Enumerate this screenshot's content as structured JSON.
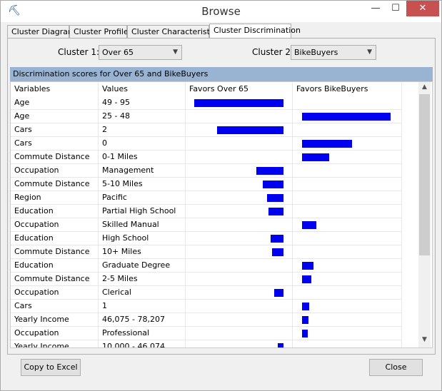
{
  "window": {
    "title": "Browse",
    "icon": "pickaxe-icon"
  },
  "tabs": [
    {
      "label": "Cluster Diagram"
    },
    {
      "label": "Cluster Profiles"
    },
    {
      "label": "Cluster Characteristics"
    },
    {
      "label": "Cluster Discrimination",
      "active": true
    }
  ],
  "filters": {
    "cluster1_label": "Cluster 1:",
    "cluster1_value": "Over 65",
    "cluster2_label": "Cluster 2:",
    "cluster2_value": "BikeBuyers"
  },
  "banner": "Discrimination scores for Over 65 and BikeBuyers",
  "columns": [
    "Variables",
    "Values",
    "Favors Over 65",
    "Favors BikeBuyers"
  ],
  "bar_color": "#0000f0",
  "rows": [
    {
      "variable": "Age",
      "value": "49 - 95",
      "favors": "Over 65",
      "score": 100
    },
    {
      "variable": "Age",
      "value": "25 - 48",
      "favors": "BikeBuyers",
      "score": 99
    },
    {
      "variable": "Cars",
      "value": "2",
      "favors": "Over 65",
      "score": 74
    },
    {
      "variable": "Cars",
      "value": "0",
      "favors": "BikeBuyers",
      "score": 56
    },
    {
      "variable": "Commute Distance",
      "value": "0-1 Miles",
      "favors": "BikeBuyers",
      "score": 30
    },
    {
      "variable": "Occupation",
      "value": "Management",
      "favors": "Over 65",
      "score": 30
    },
    {
      "variable": "Commute Distance",
      "value": "5-10 Miles",
      "favors": "Over 65",
      "score": 23
    },
    {
      "variable": "Region",
      "value": "Pacific",
      "favors": "Over 65",
      "score": 18
    },
    {
      "variable": "Education",
      "value": "Partial High School",
      "favors": "Over 65",
      "score": 17
    },
    {
      "variable": "Occupation",
      "value": "Skilled Manual",
      "favors": "BikeBuyers",
      "score": 16
    },
    {
      "variable": "Education",
      "value": "High School",
      "favors": "Over 65",
      "score": 14
    },
    {
      "variable": "Commute Distance",
      "value": "10+ Miles",
      "favors": "Over 65",
      "score": 13
    },
    {
      "variable": "Education",
      "value": "Graduate Degree",
      "favors": "BikeBuyers",
      "score": 13
    },
    {
      "variable": "Commute Distance",
      "value": "2-5 Miles",
      "favors": "BikeBuyers",
      "score": 10
    },
    {
      "variable": "Occupation",
      "value": "Clerical",
      "favors": "Over 65",
      "score": 10
    },
    {
      "variable": "Cars",
      "value": "1",
      "favors": "BikeBuyers",
      "score": 8
    },
    {
      "variable": "Yearly Income",
      "value": "46,075 - 78,207",
      "favors": "BikeBuyers",
      "score": 7
    },
    {
      "variable": "Occupation",
      "value": "Professional",
      "favors": "BikeBuyers",
      "score": 6
    },
    {
      "variable": "Yearly Income",
      "value": "10,000 - 46,074",
      "favors": "Over 65",
      "score": 6
    }
  ],
  "buttons": {
    "copy": "Copy to Excel",
    "close": "Close"
  }
}
